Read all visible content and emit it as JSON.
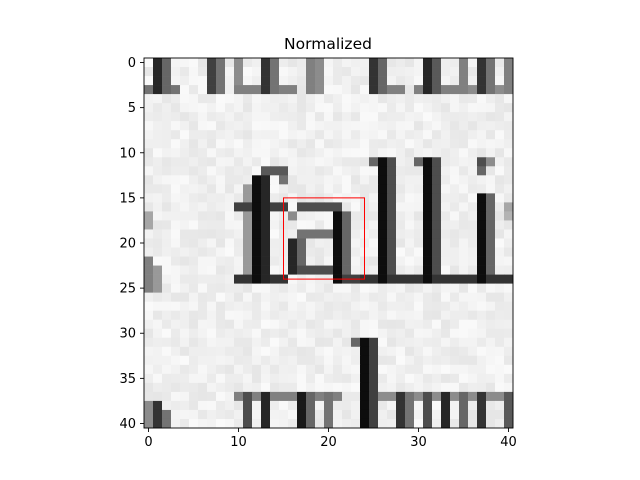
{
  "chart_data": {
    "type": "heatmap",
    "title": "Normalized",
    "xlabel": "",
    "ylabel": "",
    "grid": false,
    "colormap": "gray",
    "x_range": [
      -0.5,
      40.5
    ],
    "y_range": [
      40.5,
      -0.5
    ],
    "x_ticks": [
      0,
      10,
      20,
      30,
      40
    ],
    "y_ticks": [
      0,
      5,
      10,
      15,
      20,
      25,
      30,
      35,
      40
    ],
    "image_size": [
      41,
      41
    ],
    "content": "grayscale crop of printed text showing the letters 'f a l l i' across the middle rows, with partial text above and below",
    "annotations": [
      {
        "type": "rectangle",
        "color": "#ff0000",
        "x": [
          15,
          24
        ],
        "y": [
          15,
          24
        ]
      }
    ]
  }
}
